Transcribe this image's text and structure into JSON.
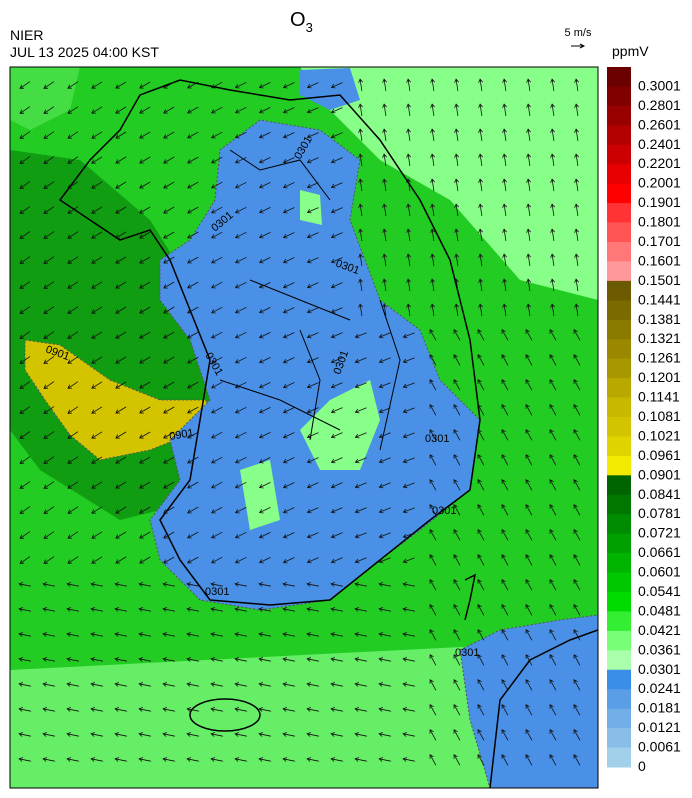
{
  "header": {
    "agency": "NIER",
    "datetime": "JUL 13 2025 04:00 KST",
    "title": "O",
    "title_subscript": "3",
    "wind_reference": "5 m/s"
  },
  "colorbar": {
    "unit": "ppmV",
    "labels": [
      0.3001,
      0.2801,
      0.2601,
      0.2401,
      0.2201,
      0.2001,
      0.1901,
      0.1801,
      0.1701,
      0.1601,
      0.1501,
      0.1441,
      0.1381,
      0.1321,
      0.1261,
      0.1201,
      0.1141,
      0.1081,
      0.1021,
      0.0961,
      0.0901,
      0.0841,
      0.0781,
      0.0721,
      0.0661,
      0.0601,
      0.0541,
      0.0481,
      0.0421,
      0.0361,
      0.0301,
      0.0241,
      0.0181,
      0.0121,
      0.0061,
      0
    ],
    "colors": [
      "#6b0000",
      "#800000",
      "#990000",
      "#b30000",
      "#cc0000",
      "#e60000",
      "#ff0000",
      "#ff3333",
      "#ff5555",
      "#ff7777",
      "#ff9999",
      "#6b5a00",
      "#7a6a00",
      "#8a7a00",
      "#998800",
      "#a89800",
      "#b8a800",
      "#c8b800",
      "#d4c400",
      "#e0d400",
      "#f2ea00",
      "#006400",
      "#007800",
      "#008c00",
      "#00a000",
      "#00b400",
      "#00c800",
      "#00dc00",
      "#33ee33",
      "#77ff77",
      "#aaffaa",
      "#3a8ee8",
      "#5a9ee8",
      "#72aee8",
      "#8abee8",
      "#a2d0ea"
    ]
  },
  "contour_labels": [
    "0301",
    "0301",
    "0301",
    "0301",
    "0301",
    "0301",
    "0301",
    "0301",
    "0301",
    "0901",
    "0901"
  ]
}
